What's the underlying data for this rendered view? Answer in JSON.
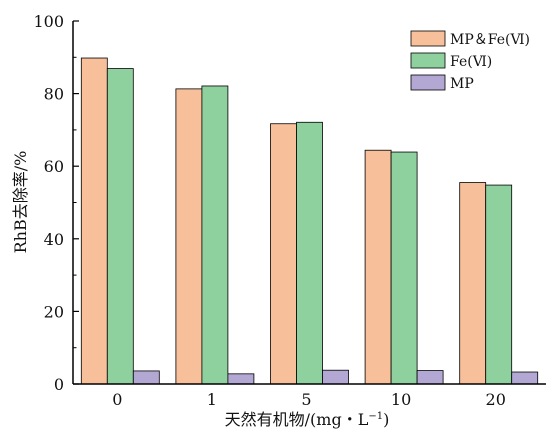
{
  "chart_data": {
    "type": "bar",
    "categories": [
      "0",
      "1",
      "5",
      "10",
      "20"
    ],
    "series": [
      {
        "name": "MP＆Fe(Ⅵ)",
        "color": "#f8c09a",
        "values": [
          89.8,
          81.3,
          71.7,
          64.4,
          55.5
        ]
      },
      {
        "name": "Fe(Ⅵ)",
        "color": "#8fd19e",
        "values": [
          86.9,
          82.1,
          72.1,
          63.9,
          54.8
        ]
      },
      {
        "name": "MP",
        "color": "#b3a8d3",
        "values": [
          3.6,
          2.8,
          3.8,
          3.7,
          3.3
        ]
      }
    ],
    "xlabel": "天然有机物/(mg・L",
    "xlabel_sup": "−1",
    "xlabel_end": ")",
    "ylabel": "RhB去除率/%",
    "ylim": [
      0,
      100
    ],
    "yticks": [
      "0",
      "20",
      "40",
      "60",
      "80",
      "100"
    ],
    "legend_position": "top-right",
    "grid": false
  }
}
